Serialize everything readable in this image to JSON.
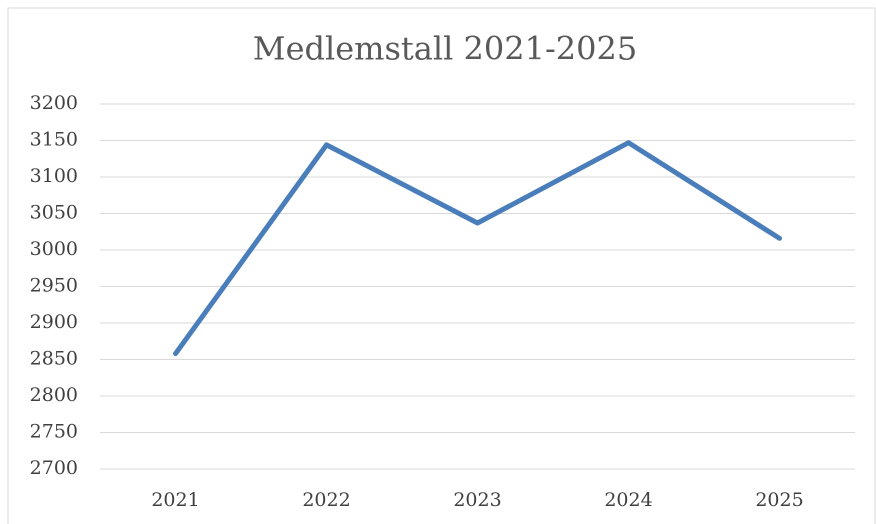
{
  "chart_data": {
    "type": "line",
    "title": "Medlemstall 2021-2025",
    "categories": [
      "2021",
      "2022",
      "2023",
      "2024",
      "2025"
    ],
    "series": [
      {
        "name": "Medlemstall",
        "color": "#4a7ebb",
        "values": [
          2858,
          3144,
          3037,
          3147,
          3016
        ]
      }
    ],
    "ylim": [
      2700,
      3200
    ],
    "yticks": [
      2700,
      2750,
      2800,
      2850,
      2900,
      2950,
      3000,
      3050,
      3100,
      3150,
      3200
    ],
    "grid": true
  }
}
